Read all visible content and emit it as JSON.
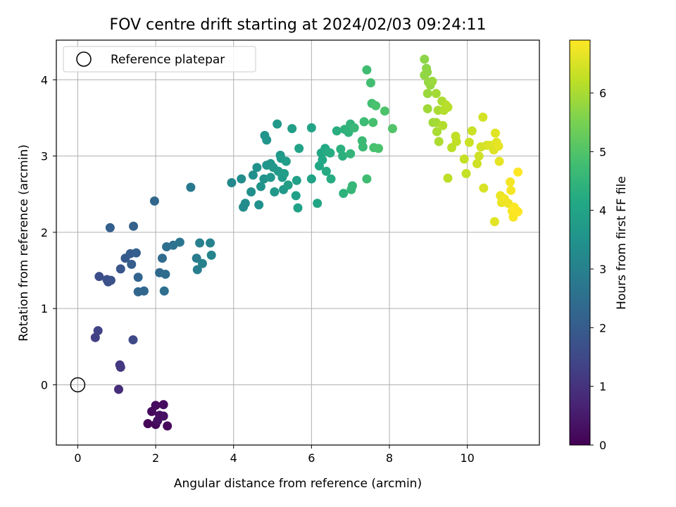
{
  "chart_data": {
    "type": "scatter",
    "title": "FOV centre drift starting at 2024/02/03 09:24:11",
    "xlabel": "Angular distance from reference (arcmin)",
    "ylabel": "Rotation from reference (arcmin)",
    "xlim": [
      -0.55,
      11.85
    ],
    "ylim": [
      -0.79,
      4.52
    ],
    "xticks": [
      0,
      2,
      4,
      6,
      8,
      10
    ],
    "yticks": [
      0,
      1,
      2,
      3,
      4
    ],
    "grid": true,
    "legend": {
      "placement": "top-left",
      "entries": [
        "Reference platepar"
      ]
    },
    "reference_point": {
      "x": 0,
      "y": 0,
      "marker": "open-circle"
    },
    "colorbar": {
      "label": "Hours from first FF file",
      "colormap": "viridis",
      "range": [
        0,
        6.9
      ],
      "ticks": [
        0,
        1,
        2,
        3,
        4,
        5,
        6
      ]
    },
    "points": [
      {
        "x": 1.8,
        "y": -0.51,
        "c": 0.1
      },
      {
        "x": 2.0,
        "y": -0.52,
        "c": 0.12
      },
      {
        "x": 2.3,
        "y": -0.54,
        "c": 0.14
      },
      {
        "x": 1.9,
        "y": -0.35,
        "c": 0.18
      },
      {
        "x": 2.0,
        "y": -0.27,
        "c": 0.2
      },
      {
        "x": 2.2,
        "y": -0.26,
        "c": 0.22
      },
      {
        "x": 2.1,
        "y": -0.4,
        "c": 0.25
      },
      {
        "x": 2.2,
        "y": -0.41,
        "c": 0.27
      },
      {
        "x": 2.05,
        "y": -0.47,
        "c": 0.3
      },
      {
        "x": 1.05,
        "y": -0.06,
        "c": 0.9
      },
      {
        "x": 1.08,
        "y": 0.26,
        "c": 1.1
      },
      {
        "x": 1.1,
        "y": 0.23,
        "c": 1.15
      },
      {
        "x": 0.45,
        "y": 0.62,
        "c": 1.3
      },
      {
        "x": 0.52,
        "y": 0.71,
        "c": 1.35
      },
      {
        "x": 1.42,
        "y": 0.59,
        "c": 1.5
      },
      {
        "x": 0.55,
        "y": 1.42,
        "c": 1.6
      },
      {
        "x": 0.75,
        "y": 1.38,
        "c": 1.7
      },
      {
        "x": 0.78,
        "y": 1.35,
        "c": 1.72
      },
      {
        "x": 0.85,
        "y": 1.37,
        "c": 1.75
      },
      {
        "x": 1.1,
        "y": 1.52,
        "c": 1.85
      },
      {
        "x": 1.22,
        "y": 1.66,
        "c": 1.95
      },
      {
        "x": 1.35,
        "y": 1.72,
        "c": 2.0
      },
      {
        "x": 1.38,
        "y": 1.58,
        "c": 2.05
      },
      {
        "x": 1.5,
        "y": 1.73,
        "c": 2.1
      },
      {
        "x": 0.83,
        "y": 2.06,
        "c": 2.1
      },
      {
        "x": 1.43,
        "y": 2.08,
        "c": 2.15
      },
      {
        "x": 1.55,
        "y": 1.41,
        "c": 2.2
      },
      {
        "x": 1.55,
        "y": 1.22,
        "c": 2.25
      },
      {
        "x": 1.7,
        "y": 1.23,
        "c": 2.3
      },
      {
        "x": 1.97,
        "y": 2.41,
        "c": 2.3
      },
      {
        "x": 2.1,
        "y": 1.47,
        "c": 2.35
      },
      {
        "x": 2.17,
        "y": 1.66,
        "c": 2.4
      },
      {
        "x": 2.25,
        "y": 1.45,
        "c": 2.45
      },
      {
        "x": 2.22,
        "y": 1.23,
        "c": 2.5
      },
      {
        "x": 2.28,
        "y": 1.81,
        "c": 2.55
      },
      {
        "x": 2.45,
        "y": 1.83,
        "c": 2.6
      },
      {
        "x": 2.62,
        "y": 1.87,
        "c": 2.7
      },
      {
        "x": 2.9,
        "y": 2.59,
        "c": 2.8
      },
      {
        "x": 3.05,
        "y": 1.66,
        "c": 2.85
      },
      {
        "x": 3.07,
        "y": 1.51,
        "c": 2.9
      },
      {
        "x": 3.13,
        "y": 1.86,
        "c": 2.95
      },
      {
        "x": 3.2,
        "y": 1.59,
        "c": 3.0
      },
      {
        "x": 3.4,
        "y": 1.86,
        "c": 3.05
      },
      {
        "x": 3.43,
        "y": 1.7,
        "c": 3.1
      },
      {
        "x": 3.95,
        "y": 2.65,
        "c": 3.2
      },
      {
        "x": 4.2,
        "y": 2.7,
        "c": 3.3
      },
      {
        "x": 4.3,
        "y": 2.38,
        "c": 3.35
      },
      {
        "x": 4.25,
        "y": 2.33,
        "c": 3.35
      },
      {
        "x": 4.45,
        "y": 2.53,
        "c": 3.4
      },
      {
        "x": 4.5,
        "y": 2.75,
        "c": 3.4
      },
      {
        "x": 4.6,
        "y": 2.85,
        "c": 3.45
      },
      {
        "x": 4.65,
        "y": 2.36,
        "c": 3.45
      },
      {
        "x": 4.7,
        "y": 2.6,
        "c": 3.5
      },
      {
        "x": 4.78,
        "y": 2.7,
        "c": 3.5
      },
      {
        "x": 4.8,
        "y": 3.27,
        "c": 3.55
      },
      {
        "x": 4.85,
        "y": 3.21,
        "c": 3.55
      },
      {
        "x": 4.85,
        "y": 2.88,
        "c": 3.6
      },
      {
        "x": 4.95,
        "y": 2.9,
        "c": 3.6
      },
      {
        "x": 4.95,
        "y": 2.72,
        "c": 3.6
      },
      {
        "x": 5.02,
        "y": 2.85,
        "c": 3.65
      },
      {
        "x": 5.05,
        "y": 2.53,
        "c": 3.65
      },
      {
        "x": 5.12,
        "y": 3.42,
        "c": 3.7
      },
      {
        "x": 5.15,
        "y": 2.8,
        "c": 3.7
      },
      {
        "x": 5.2,
        "y": 3.01,
        "c": 3.7
      },
      {
        "x": 5.22,
        "y": 2.97,
        "c": 3.75
      },
      {
        "x": 5.25,
        "y": 2.72,
        "c": 3.75
      },
      {
        "x": 5.28,
        "y": 2.56,
        "c": 3.75
      },
      {
        "x": 5.3,
        "y": 2.77,
        "c": 3.8
      },
      {
        "x": 5.35,
        "y": 2.93,
        "c": 3.8
      },
      {
        "x": 5.4,
        "y": 2.62,
        "c": 3.85
      },
      {
        "x": 5.5,
        "y": 3.36,
        "c": 3.85
      },
      {
        "x": 5.6,
        "y": 2.48,
        "c": 3.9
      },
      {
        "x": 5.62,
        "y": 2.68,
        "c": 3.9
      },
      {
        "x": 5.65,
        "y": 2.32,
        "c": 3.95
      },
      {
        "x": 5.68,
        "y": 3.1,
        "c": 3.95
      },
      {
        "x": 6.0,
        "y": 3.37,
        "c": 4.0
      },
      {
        "x": 6.0,
        "y": 2.7,
        "c": 4.0
      },
      {
        "x": 6.15,
        "y": 2.38,
        "c": 4.05
      },
      {
        "x": 6.2,
        "y": 2.87,
        "c": 4.1
      },
      {
        "x": 6.25,
        "y": 3.04,
        "c": 4.1
      },
      {
        "x": 6.28,
        "y": 2.95,
        "c": 4.15
      },
      {
        "x": 6.35,
        "y": 3.1,
        "c": 4.15
      },
      {
        "x": 6.38,
        "y": 2.8,
        "c": 4.2
      },
      {
        "x": 6.4,
        "y": 3.06,
        "c": 4.2
      },
      {
        "x": 6.48,
        "y": 3.04,
        "c": 4.25
      },
      {
        "x": 6.5,
        "y": 2.7,
        "c": 4.25
      },
      {
        "x": 6.65,
        "y": 3.33,
        "c": 4.3
      },
      {
        "x": 6.75,
        "y": 3.09,
        "c": 4.35
      },
      {
        "x": 6.8,
        "y": 3.0,
        "c": 4.35
      },
      {
        "x": 6.82,
        "y": 2.51,
        "c": 4.4
      },
      {
        "x": 6.85,
        "y": 3.35,
        "c": 4.4
      },
      {
        "x": 6.95,
        "y": 3.31,
        "c": 4.45
      },
      {
        "x": 6.98,
        "y": 3.37,
        "c": 4.45
      },
      {
        "x": 7.0,
        "y": 3.42,
        "c": 4.5
      },
      {
        "x": 7.0,
        "y": 3.03,
        "c": 4.5
      },
      {
        "x": 7.02,
        "y": 2.56,
        "c": 4.55
      },
      {
        "x": 7.05,
        "y": 2.61,
        "c": 4.55
      },
      {
        "x": 7.1,
        "y": 3.37,
        "c": 4.6
      },
      {
        "x": 7.3,
        "y": 3.2,
        "c": 4.65
      },
      {
        "x": 7.32,
        "y": 3.12,
        "c": 4.65
      },
      {
        "x": 7.35,
        "y": 3.45,
        "c": 4.7
      },
      {
        "x": 7.42,
        "y": 2.7,
        "c": 4.75
      },
      {
        "x": 7.42,
        "y": 4.13,
        "c": 4.75
      },
      {
        "x": 7.52,
        "y": 3.96,
        "c": 4.8
      },
      {
        "x": 7.55,
        "y": 3.69,
        "c": 4.8
      },
      {
        "x": 7.58,
        "y": 3.44,
        "c": 4.85
      },
      {
        "x": 7.6,
        "y": 3.11,
        "c": 4.85
      },
      {
        "x": 7.65,
        "y": 3.66,
        "c": 4.9
      },
      {
        "x": 7.72,
        "y": 3.1,
        "c": 4.9
      },
      {
        "x": 7.88,
        "y": 3.59,
        "c": 4.95
      },
      {
        "x": 8.08,
        "y": 3.36,
        "c": 5.0
      },
      {
        "x": 8.9,
        "y": 4.27,
        "c": 5.7
      },
      {
        "x": 8.95,
        "y": 4.15,
        "c": 5.7
      },
      {
        "x": 8.97,
        "y": 4.1,
        "c": 5.75
      },
      {
        "x": 8.9,
        "y": 4.06,
        "c": 5.75
      },
      {
        "x": 9.0,
        "y": 3.97,
        "c": 5.8
      },
      {
        "x": 9.05,
        "y": 3.93,
        "c": 5.8
      },
      {
        "x": 9.1,
        "y": 3.98,
        "c": 5.85
      },
      {
        "x": 8.98,
        "y": 3.82,
        "c": 5.85
      },
      {
        "x": 8.98,
        "y": 3.62,
        "c": 5.9
      },
      {
        "x": 9.12,
        "y": 3.44,
        "c": 5.9
      },
      {
        "x": 9.2,
        "y": 3.82,
        "c": 5.95
      },
      {
        "x": 9.2,
        "y": 3.44,
        "c": 5.95
      },
      {
        "x": 9.22,
        "y": 3.32,
        "c": 6.0
      },
      {
        "x": 9.25,
        "y": 3.6,
        "c": 6.0
      },
      {
        "x": 9.27,
        "y": 3.19,
        "c": 6.05
      },
      {
        "x": 9.35,
        "y": 3.72,
        "c": 6.05
      },
      {
        "x": 9.37,
        "y": 3.4,
        "c": 6.1
      },
      {
        "x": 9.4,
        "y": 3.6,
        "c": 6.1
      },
      {
        "x": 9.45,
        "y": 3.67,
        "c": 6.15
      },
      {
        "x": 9.5,
        "y": 3.64,
        "c": 6.15
      },
      {
        "x": 9.5,
        "y": 2.71,
        "c": 6.2
      },
      {
        "x": 9.6,
        "y": 3.11,
        "c": 6.2
      },
      {
        "x": 9.7,
        "y": 3.26,
        "c": 6.25
      },
      {
        "x": 9.72,
        "y": 3.19,
        "c": 6.25
      },
      {
        "x": 9.92,
        "y": 2.96,
        "c": 6.3
      },
      {
        "x": 9.97,
        "y": 2.77,
        "c": 6.3
      },
      {
        "x": 10.05,
        "y": 3.18,
        "c": 6.35
      },
      {
        "x": 10.12,
        "y": 3.33,
        "c": 6.35
      },
      {
        "x": 10.25,
        "y": 2.9,
        "c": 6.4
      },
      {
        "x": 10.3,
        "y": 3.0,
        "c": 6.4
      },
      {
        "x": 10.35,
        "y": 3.12,
        "c": 6.45
      },
      {
        "x": 10.4,
        "y": 3.51,
        "c": 6.45
      },
      {
        "x": 10.42,
        "y": 2.58,
        "c": 6.5
      },
      {
        "x": 10.5,
        "y": 3.14,
        "c": 6.5
      },
      {
        "x": 10.58,
        "y": 3.14,
        "c": 6.55
      },
      {
        "x": 10.68,
        "y": 3.08,
        "c": 6.55
      },
      {
        "x": 10.7,
        "y": 2.14,
        "c": 6.6
      },
      {
        "x": 10.72,
        "y": 3.3,
        "c": 6.6
      },
      {
        "x": 10.75,
        "y": 3.18,
        "c": 6.6
      },
      {
        "x": 10.8,
        "y": 3.13,
        "c": 6.65
      },
      {
        "x": 10.82,
        "y": 2.93,
        "c": 6.65
      },
      {
        "x": 10.85,
        "y": 2.48,
        "c": 6.7
      },
      {
        "x": 10.88,
        "y": 2.39,
        "c": 6.7
      },
      {
        "x": 10.95,
        "y": 2.44,
        "c": 6.75
      },
      {
        "x": 11.05,
        "y": 2.38,
        "c": 6.75
      },
      {
        "x": 11.1,
        "y": 2.66,
        "c": 6.8
      },
      {
        "x": 11.12,
        "y": 2.55,
        "c": 6.8
      },
      {
        "x": 11.15,
        "y": 2.28,
        "c": 6.85
      },
      {
        "x": 11.18,
        "y": 2.2,
        "c": 6.85
      },
      {
        "x": 11.2,
        "y": 2.33,
        "c": 6.88
      },
      {
        "x": 11.25,
        "y": 2.29,
        "c": 6.9
      },
      {
        "x": 11.3,
        "y": 2.79,
        "c": 6.9
      },
      {
        "x": 11.3,
        "y": 2.27,
        "c": 6.9
      }
    ]
  }
}
